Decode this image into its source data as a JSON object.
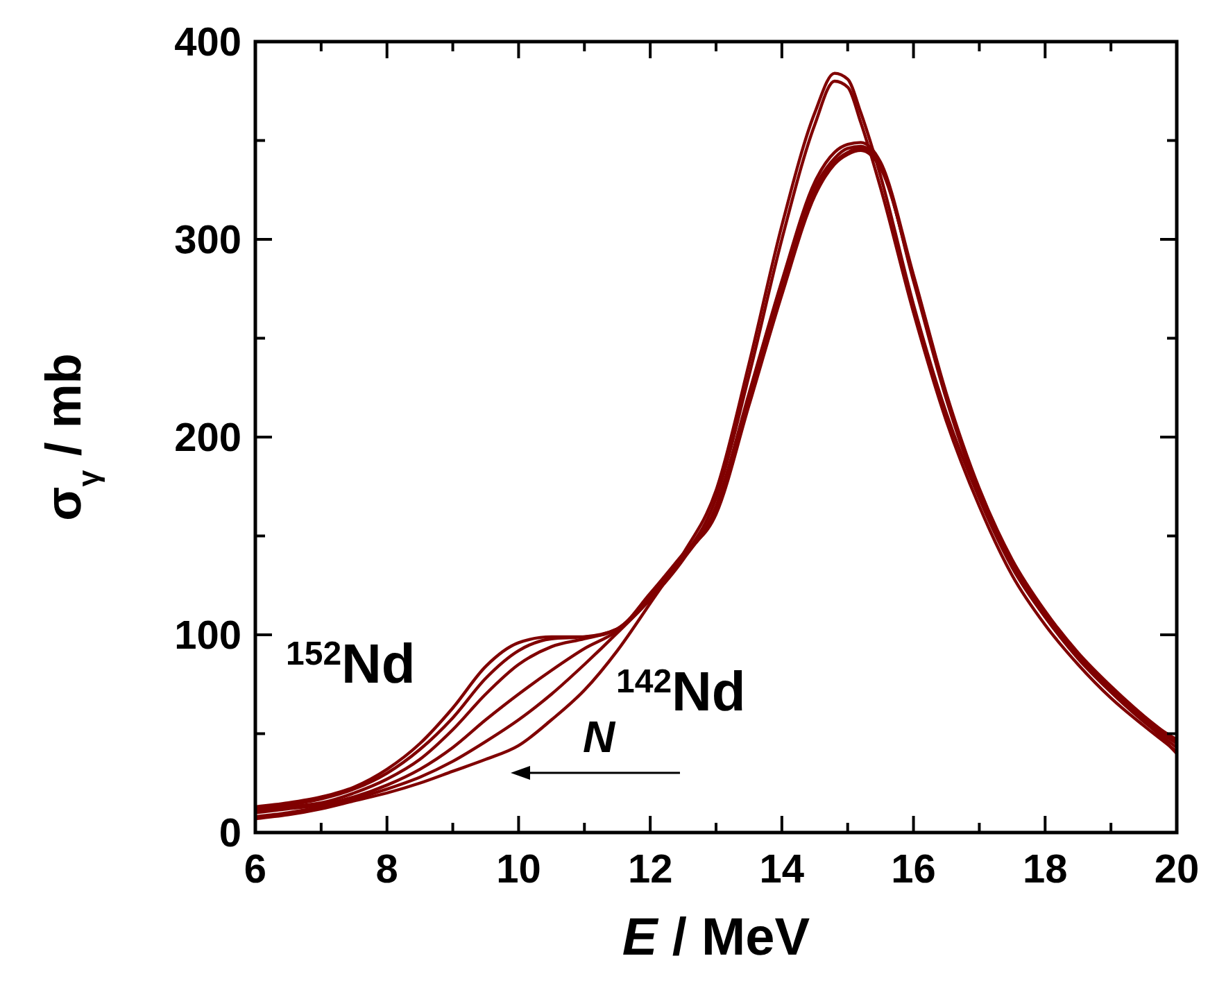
{
  "chart_data": {
    "type": "line",
    "xlabel": "E / MeV",
    "ylabel": "σ$_{γ}$ / mb",
    "xlim": [
      6,
      20
    ],
    "ylim": [
      0,
      400
    ],
    "xticks": [
      6,
      {
        "value": 7,
        "label": null
      },
      8,
      {
        "value": 9,
        "label": null
      },
      10,
      {
        "value": 11,
        "label": null
      },
      12,
      {
        "value": 13,
        "label": null
      },
      14,
      {
        "value": 15,
        "label": null
      },
      16,
      {
        "value": 17,
        "label": null
      },
      18,
      {
        "value": 19,
        "label": null
      },
      20
    ],
    "yticks": [
      0,
      {
        "value": 50,
        "label": null
      },
      100,
      {
        "value": 150,
        "label": null
      },
      200,
      {
        "value": 250,
        "label": null
      },
      300,
      {
        "value": 350,
        "label": null
      },
      400
    ],
    "grid": false,
    "marker": "none",
    "line_style": "solid",
    "x": [
      6,
      6.5,
      7,
      7.5,
      8,
      8.5,
      9,
      9.5,
      10,
      10.5,
      11,
      11.5,
      12,
      12.5,
      13,
      13.5,
      14,
      14.5,
      14.8,
      15,
      15.2,
      15.5,
      16,
      16.5,
      17,
      17.5,
      18,
      18.5,
      19,
      19.5,
      20
    ],
    "series": [
      {
        "color": "#800000",
        "values": [
          13,
          15,
          18,
          23,
          32,
          45,
          63,
          84,
          96,
          99,
          99,
          103,
          121,
          141,
          161,
          216,
          272,
          322,
          338,
          343,
          345,
          336,
          281,
          221,
          173,
          137,
          111,
          90,
          73,
          58,
          47
        ]
      },
      {
        "color": "#800000",
        "values": [
          12,
          14,
          17,
          22,
          30,
          42,
          58,
          78,
          92,
          98,
          99,
          103,
          120,
          140,
          162,
          218,
          274,
          324,
          339,
          344,
          346,
          337,
          280,
          220,
          172,
          136,
          110,
          89,
          72,
          57,
          45
        ]
      },
      {
        "color": "#800000",
        "values": [
          11,
          13,
          15,
          20,
          27,
          37,
          52,
          70,
          85,
          94,
          98,
          103,
          119,
          139,
          163,
          220,
          276,
          326,
          341,
          346,
          347,
          338,
          279,
          219,
          171,
          135,
          109,
          88,
          71,
          56,
          43
        ]
      },
      {
        "color": "#800000",
        "values": [
          10,
          12,
          14,
          18,
          24,
          32,
          43,
          57,
          70,
          82,
          93,
          102,
          118,
          138,
          165,
          222,
          279,
          329,
          344,
          348,
          349,
          339,
          282,
          222,
          174,
          138,
          112,
          91,
          74,
          59,
          46
        ]
      },
      {
        "color": "#800000",
        "values": [
          8,
          10,
          13,
          17,
          22,
          28,
          36,
          46,
          57,
          70,
          85,
          101,
          118,
          139,
          169,
          231,
          300,
          358,
          380,
          377,
          359,
          326,
          263,
          208,
          165,
          130,
          105,
          85,
          68,
          54,
          41
        ]
      },
      {
        "color": "#800000",
        "values": [
          7,
          9,
          12,
          16,
          20,
          25,
          31,
          37,
          44,
          57,
          72,
          92,
          116,
          141,
          173,
          237,
          307,
          364,
          384,
          381,
          364,
          332,
          267,
          212,
          169,
          134,
          109,
          89,
          72,
          57,
          40
        ]
      }
    ],
    "annotations": [
      "$^{152}$Nd",
      "$^{142}$Nd",
      "N"
    ]
  }
}
